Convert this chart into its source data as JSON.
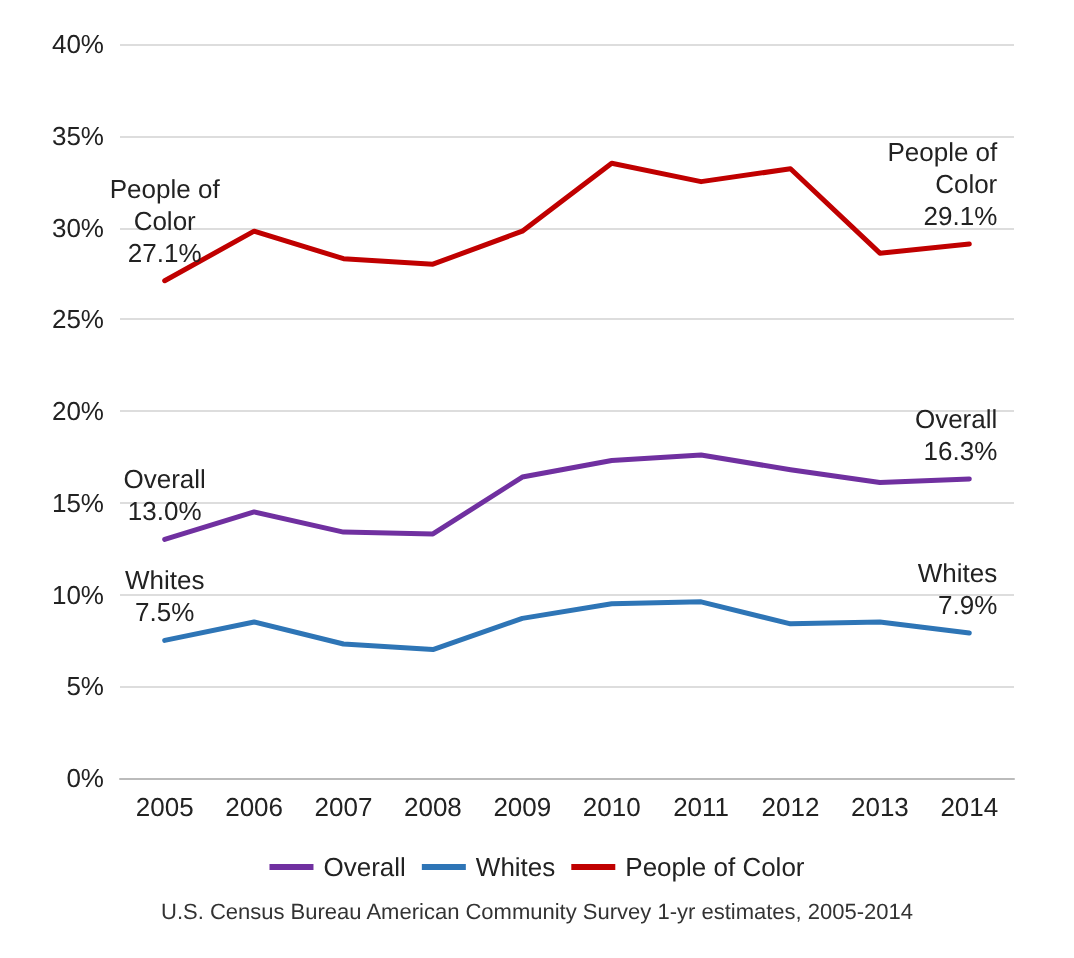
{
  "chart_data": {
    "type": "line",
    "categories": [
      "2005",
      "2006",
      "2007",
      "2008",
      "2009",
      "2010",
      "2011",
      "2012",
      "2013",
      "2014"
    ],
    "series": [
      {
        "name": "Overall",
        "color": "#7030a0",
        "values": [
          13.0,
          14.5,
          13.4,
          13.3,
          16.4,
          17.3,
          17.6,
          16.8,
          16.1,
          16.3
        ]
      },
      {
        "name": "Whites",
        "color": "#2e75b6",
        "values": [
          7.5,
          8.5,
          7.3,
          7.0,
          8.7,
          9.5,
          9.6,
          8.4,
          8.5,
          7.9
        ]
      },
      {
        "name": "People of Color",
        "color": "#c00000",
        "values": [
          27.1,
          29.8,
          28.3,
          28.0,
          29.8,
          33.5,
          32.5,
          33.2,
          28.6,
          29.1
        ]
      }
    ],
    "ylim": [
      0,
      40
    ],
    "yticks": [
      {
        "value": 0,
        "label": "0%"
      },
      {
        "value": 5,
        "label": "5%"
      },
      {
        "value": 10,
        "label": "10%"
      },
      {
        "value": 15,
        "label": "15%"
      },
      {
        "value": 20,
        "label": "20%"
      },
      {
        "value": 25,
        "label": "25%"
      },
      {
        "value": 30,
        "label": "30%"
      },
      {
        "value": 35,
        "label": "35%"
      },
      {
        "value": 40,
        "label": "40%"
      }
    ],
    "grid": "y",
    "legend": "bottom",
    "marker": "none",
    "line_style": "solid",
    "annotations": [
      {
        "text": "People of\nColor\n27.1%",
        "x": "2005",
        "y": 27.1
      },
      {
        "text": "People of\nColor\n29.1%",
        "x": "2014",
        "y": 29.1
      },
      {
        "text": "Overall\n13.0%",
        "x": "2005",
        "y": 13.0
      },
      {
        "text": "Overall\n16.3%",
        "x": "2014",
        "y": 16.3
      },
      {
        "text": "Whites\n7.5%",
        "x": "2005",
        "y": 7.5
      },
      {
        "text": "Whites\n7.9%",
        "x": "2014",
        "y": 7.9
      },
      "U.S. Census Bureau American Community Survey 1-yr estimates, 2005-2014"
    ]
  }
}
